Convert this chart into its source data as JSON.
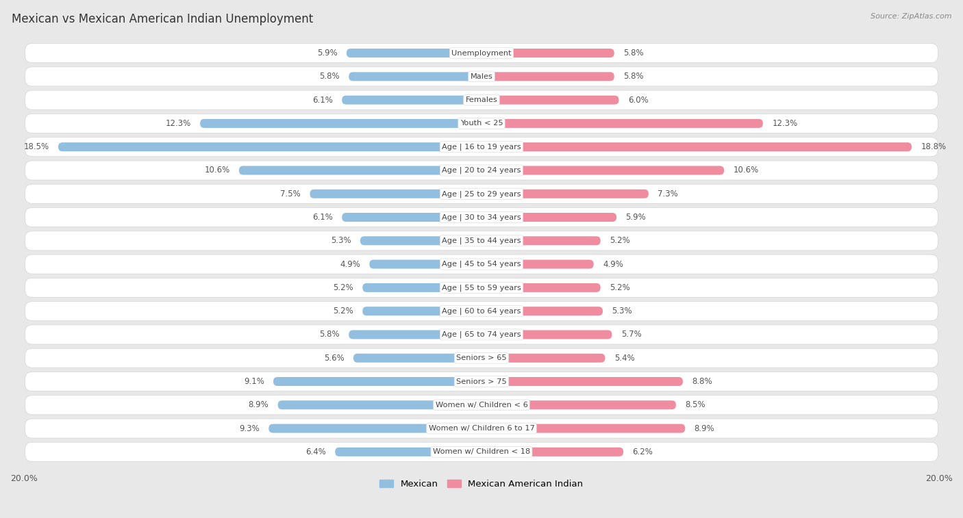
{
  "title": "Mexican vs Mexican American Indian Unemployment",
  "source": "Source: ZipAtlas.com",
  "categories": [
    "Unemployment",
    "Males",
    "Females",
    "Youth < 25",
    "Age | 16 to 19 years",
    "Age | 20 to 24 years",
    "Age | 25 to 29 years",
    "Age | 30 to 34 years",
    "Age | 35 to 44 years",
    "Age | 45 to 54 years",
    "Age | 55 to 59 years",
    "Age | 60 to 64 years",
    "Age | 65 to 74 years",
    "Seniors > 65",
    "Seniors > 75",
    "Women w/ Children < 6",
    "Women w/ Children 6 to 17",
    "Women w/ Children < 18"
  ],
  "mexican": [
    5.9,
    5.8,
    6.1,
    12.3,
    18.5,
    10.6,
    7.5,
    6.1,
    5.3,
    4.9,
    5.2,
    5.2,
    5.8,
    5.6,
    9.1,
    8.9,
    9.3,
    6.4
  ],
  "mexican_american_indian": [
    5.8,
    5.8,
    6.0,
    12.3,
    18.8,
    10.6,
    7.3,
    5.9,
    5.2,
    4.9,
    5.2,
    5.3,
    5.7,
    5.4,
    8.8,
    8.5,
    8.9,
    6.2
  ],
  "mexican_color": "#92bfe0",
  "mexican_american_indian_color": "#f08ca0",
  "max_val": 20.0,
  "fig_bg": "#e8e8e8",
  "row_bg_white": "#f5f5f5",
  "row_bg_gray": "#e2e2e2"
}
